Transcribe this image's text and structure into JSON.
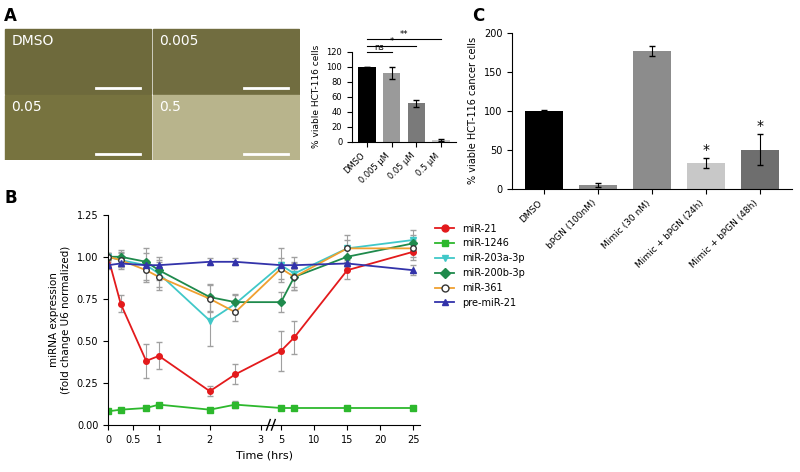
{
  "chart_data": [
    {
      "type": "image",
      "title": "A",
      "annotations": [
        "DMSO",
        "0.005",
        "0.05",
        "0.5"
      ]
    },
    {
      "type": "bar",
      "categories": [
        "DMSO",
        "0.005 µM",
        "0.05 µM",
        "0.5 µM"
      ],
      "values": [
        100,
        92,
        51,
        2
      ],
      "errors": [
        0,
        8,
        5,
        1
      ],
      "colors": [
        "#000000",
        "#9a9a9a",
        "#7a7a7a",
        "#c8c8c8"
      ],
      "ylabel": "% viable HCT-116 cells",
      "ylim": [
        0,
        120
      ],
      "yticks": [
        0,
        20,
        40,
        60,
        80,
        100,
        120
      ],
      "annotations": [
        {
          "text": "ns",
          "categories": [
            "DMSO",
            "0.005 µM"
          ]
        },
        {
          "text": "*",
          "categories": [
            "DMSO",
            "0.05 µM"
          ]
        },
        {
          "text": "**",
          "categories": [
            "DMSO",
            "0.5 µM"
          ]
        }
      ]
    },
    {
      "type": "line",
      "title": "B",
      "xlabel": "Time (hrs)",
      "ylabel": "miRNA expression\n(fold change U6 normalized)",
      "x": [
        0,
        0.25,
        0.75,
        1,
        2,
        2.5,
        5,
        7,
        15,
        25
      ],
      "xlim": [
        0,
        26
      ],
      "xticks": [
        0,
        0.5,
        1,
        2,
        3,
        5,
        10,
        15,
        20,
        25
      ],
      "ylim": [
        0,
        1.25
      ],
      "yticks": [
        {
          "value": 0,
          "label": "0.00"
        },
        0.25,
        {
          "value": 0.5,
          "label": "0.50"
        },
        0.75,
        {
          "value": 1,
          "label": "1.00"
        },
        1.25
      ],
      "legend": "right",
      "series": [
        {
          "name": "miR-21",
          "color": "#e31a1c",
          "marker": "circle",
          "values": [
            1.0,
            0.72,
            0.38,
            0.41,
            0.2,
            0.3,
            0.44,
            0.52,
            0.92,
            1.03
          ],
          "errors": [
            0.02,
            0.05,
            0.1,
            0.08,
            0.03,
            0.06,
            0.12,
            0.1,
            0.05,
            0.05
          ]
        },
        {
          "name": "miR-1246",
          "color": "#2db82d",
          "marker": "square",
          "values": [
            0.08,
            0.09,
            0.1,
            0.12,
            0.09,
            0.12,
            0.1,
            0.1,
            0.1,
            0.1
          ],
          "errors": [
            0.01,
            0.01,
            0.01,
            0.01,
            0.01,
            0.02,
            0.01,
            0.01,
            0.01,
            0.01
          ]
        },
        {
          "name": "miR-203a-3p",
          "color": "#40c8c8",
          "marker": "triangle_down",
          "values": [
            1.0,
            0.98,
            0.95,
            0.9,
            0.62,
            0.72,
            0.95,
            0.9,
            1.05,
            1.1
          ],
          "errors": [
            0.02,
            0.05,
            0.1,
            0.1,
            0.15,
            0.05,
            0.1,
            0.1,
            0.08,
            0.06
          ]
        },
        {
          "name": "miR-200b-3p",
          "color": "#1f8a4c",
          "marker": "diamond",
          "values": [
            1.0,
            1.0,
            0.97,
            0.92,
            0.76,
            0.73,
            0.73,
            0.88,
            1.0,
            1.08
          ],
          "errors": [
            0.02,
            0.04,
            0.05,
            0.06,
            0.08,
            0.05,
            0.06,
            0.08,
            0.05,
            0.05
          ]
        },
        {
          "name": "miR-361",
          "color": "#f0a030",
          "marker": "open_circle",
          "values": [
            1.0,
            0.98,
            0.92,
            0.88,
            0.75,
            0.67,
            0.93,
            0.88,
            1.05,
            1.05
          ],
          "errors": [
            0.02,
            0.04,
            0.06,
            0.06,
            0.08,
            0.05,
            0.06,
            0.06,
            0.05,
            0.05
          ]
        },
        {
          "name": "pre-miR-21",
          "color": "#3333aa",
          "marker": "triangle_up",
          "values": [
            0.95,
            0.96,
            0.95,
            0.95,
            0.97,
            0.97,
            0.95,
            0.95,
            0.96,
            0.92
          ],
          "errors": [
            0.02,
            0.02,
            0.02,
            0.02,
            0.02,
            0.02,
            0.02,
            0.02,
            0.02,
            0.03
          ]
        }
      ]
    },
    {
      "type": "bar",
      "title": "C",
      "categories": [
        "DMSO",
        "bPGN (100nM)",
        "Mimic (30 nM)",
        "Mimic + bPGN (24h)",
        "Mimic + bPGN (48h)"
      ],
      "values": [
        100,
        5,
        177,
        33,
        50
      ],
      "errors": [
        1,
        3,
        7,
        6,
        20
      ],
      "colors": [
        "#000000",
        "#8c8c8c",
        "#8c8c8c",
        "#c8c8c8",
        "#6e6e6e"
      ],
      "ylabel": "% viable HCT-116 cancer cells",
      "ylim": [
        0,
        200
      ],
      "yticks": [
        0,
        50,
        100,
        150,
        200
      ],
      "annotations": [
        {
          "text": "*",
          "category": "Mimic + bPGN (24h)"
        },
        {
          "text": "*",
          "category": "Mimic + bPGN (48h)"
        }
      ]
    }
  ]
}
